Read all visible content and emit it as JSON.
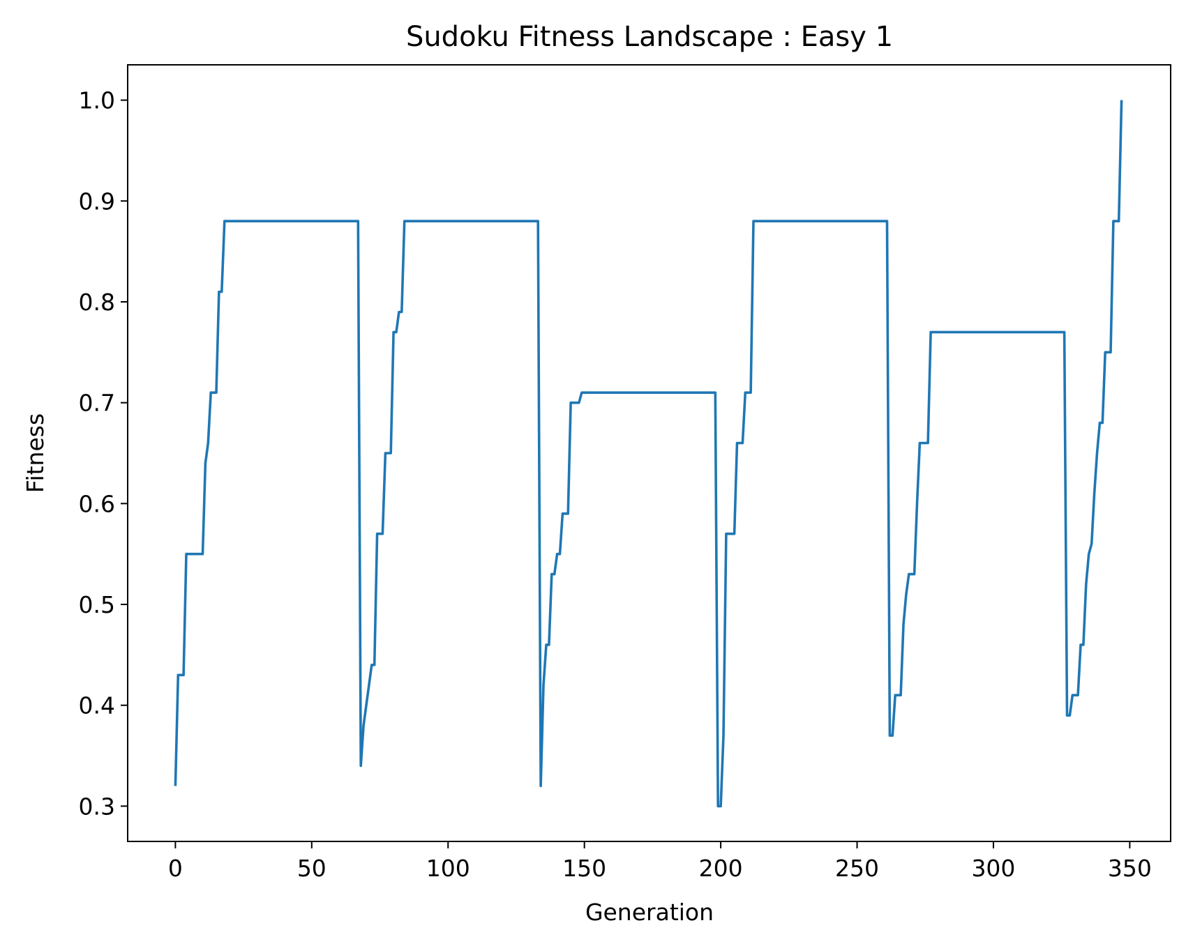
{
  "chart_data": {
    "type": "line",
    "title": "Sudoku Fitness Landscape : Easy 1",
    "xlabel": "Generation",
    "ylabel": "Fitness",
    "xlim": [
      -17.5,
      365
    ],
    "ylim": [
      0.265,
      1.035
    ],
    "xticks": [
      0,
      50,
      100,
      150,
      200,
      250,
      300,
      350
    ],
    "xtick_labels": [
      "0",
      "50",
      "100",
      "150",
      "200",
      "250",
      "300",
      "350"
    ],
    "yticks": [
      0.3,
      0.4,
      0.5,
      0.6,
      0.7,
      0.8,
      0.9,
      1.0
    ],
    "ytick_labels": [
      "0.3",
      "0.4",
      "0.5",
      "0.6",
      "0.7",
      "0.8",
      "0.9",
      "1.0"
    ],
    "grid": false,
    "legend": "none",
    "series": [
      {
        "color": "#1f77b4",
        "points": [
          [
            0,
            0.32
          ],
          [
            1,
            0.43
          ],
          [
            3,
            0.43
          ],
          [
            4,
            0.55
          ],
          [
            10,
            0.55
          ],
          [
            11,
            0.64
          ],
          [
            12,
            0.66
          ],
          [
            13,
            0.71
          ],
          [
            15,
            0.71
          ],
          [
            16,
            0.81
          ],
          [
            17,
            0.81
          ],
          [
            18,
            0.88
          ],
          [
            67,
            0.88
          ],
          [
            68,
            0.34
          ],
          [
            69,
            0.38
          ],
          [
            72,
            0.44
          ],
          [
            73,
            0.44
          ],
          [
            74,
            0.57
          ],
          [
            76,
            0.57
          ],
          [
            77,
            0.65
          ],
          [
            79,
            0.65
          ],
          [
            80,
            0.77
          ],
          [
            81,
            0.77
          ],
          [
            82,
            0.79
          ],
          [
            83,
            0.79
          ],
          [
            84,
            0.88
          ],
          [
            133,
            0.88
          ],
          [
            134,
            0.32
          ],
          [
            135,
            0.42
          ],
          [
            136,
            0.46
          ],
          [
            137,
            0.46
          ],
          [
            138,
            0.53
          ],
          [
            139,
            0.53
          ],
          [
            140,
            0.55
          ],
          [
            141,
            0.55
          ],
          [
            142,
            0.59
          ],
          [
            144,
            0.59
          ],
          [
            145,
            0.7
          ],
          [
            148,
            0.7
          ],
          [
            149,
            0.71
          ],
          [
            198,
            0.71
          ],
          [
            199,
            0.3
          ],
          [
            200,
            0.3
          ],
          [
            201,
            0.37
          ],
          [
            202,
            0.57
          ],
          [
            205,
            0.57
          ],
          [
            206,
            0.66
          ],
          [
            208,
            0.66
          ],
          [
            209,
            0.71
          ],
          [
            211,
            0.71
          ],
          [
            212,
            0.88
          ],
          [
            261,
            0.88
          ],
          [
            262,
            0.37
          ],
          [
            263,
            0.37
          ],
          [
            264,
            0.41
          ],
          [
            266,
            0.41
          ],
          [
            267,
            0.48
          ],
          [
            268,
            0.51
          ],
          [
            269,
            0.53
          ],
          [
            271,
            0.53
          ],
          [
            272,
            0.6
          ],
          [
            273,
            0.66
          ],
          [
            276,
            0.66
          ],
          [
            277,
            0.77
          ],
          [
            326,
            0.77
          ],
          [
            327,
            0.39
          ],
          [
            328,
            0.39
          ],
          [
            329,
            0.41
          ],
          [
            331,
            0.41
          ],
          [
            332,
            0.46
          ],
          [
            333,
            0.46
          ],
          [
            334,
            0.52
          ],
          [
            335,
            0.55
          ],
          [
            336,
            0.56
          ],
          [
            337,
            0.61
          ],
          [
            338,
            0.65
          ],
          [
            339,
            0.68
          ],
          [
            340,
            0.68
          ],
          [
            341,
            0.75
          ],
          [
            343,
            0.75
          ],
          [
            344,
            0.88
          ],
          [
            346,
            0.88
          ],
          [
            347,
            1.0
          ]
        ]
      }
    ]
  }
}
